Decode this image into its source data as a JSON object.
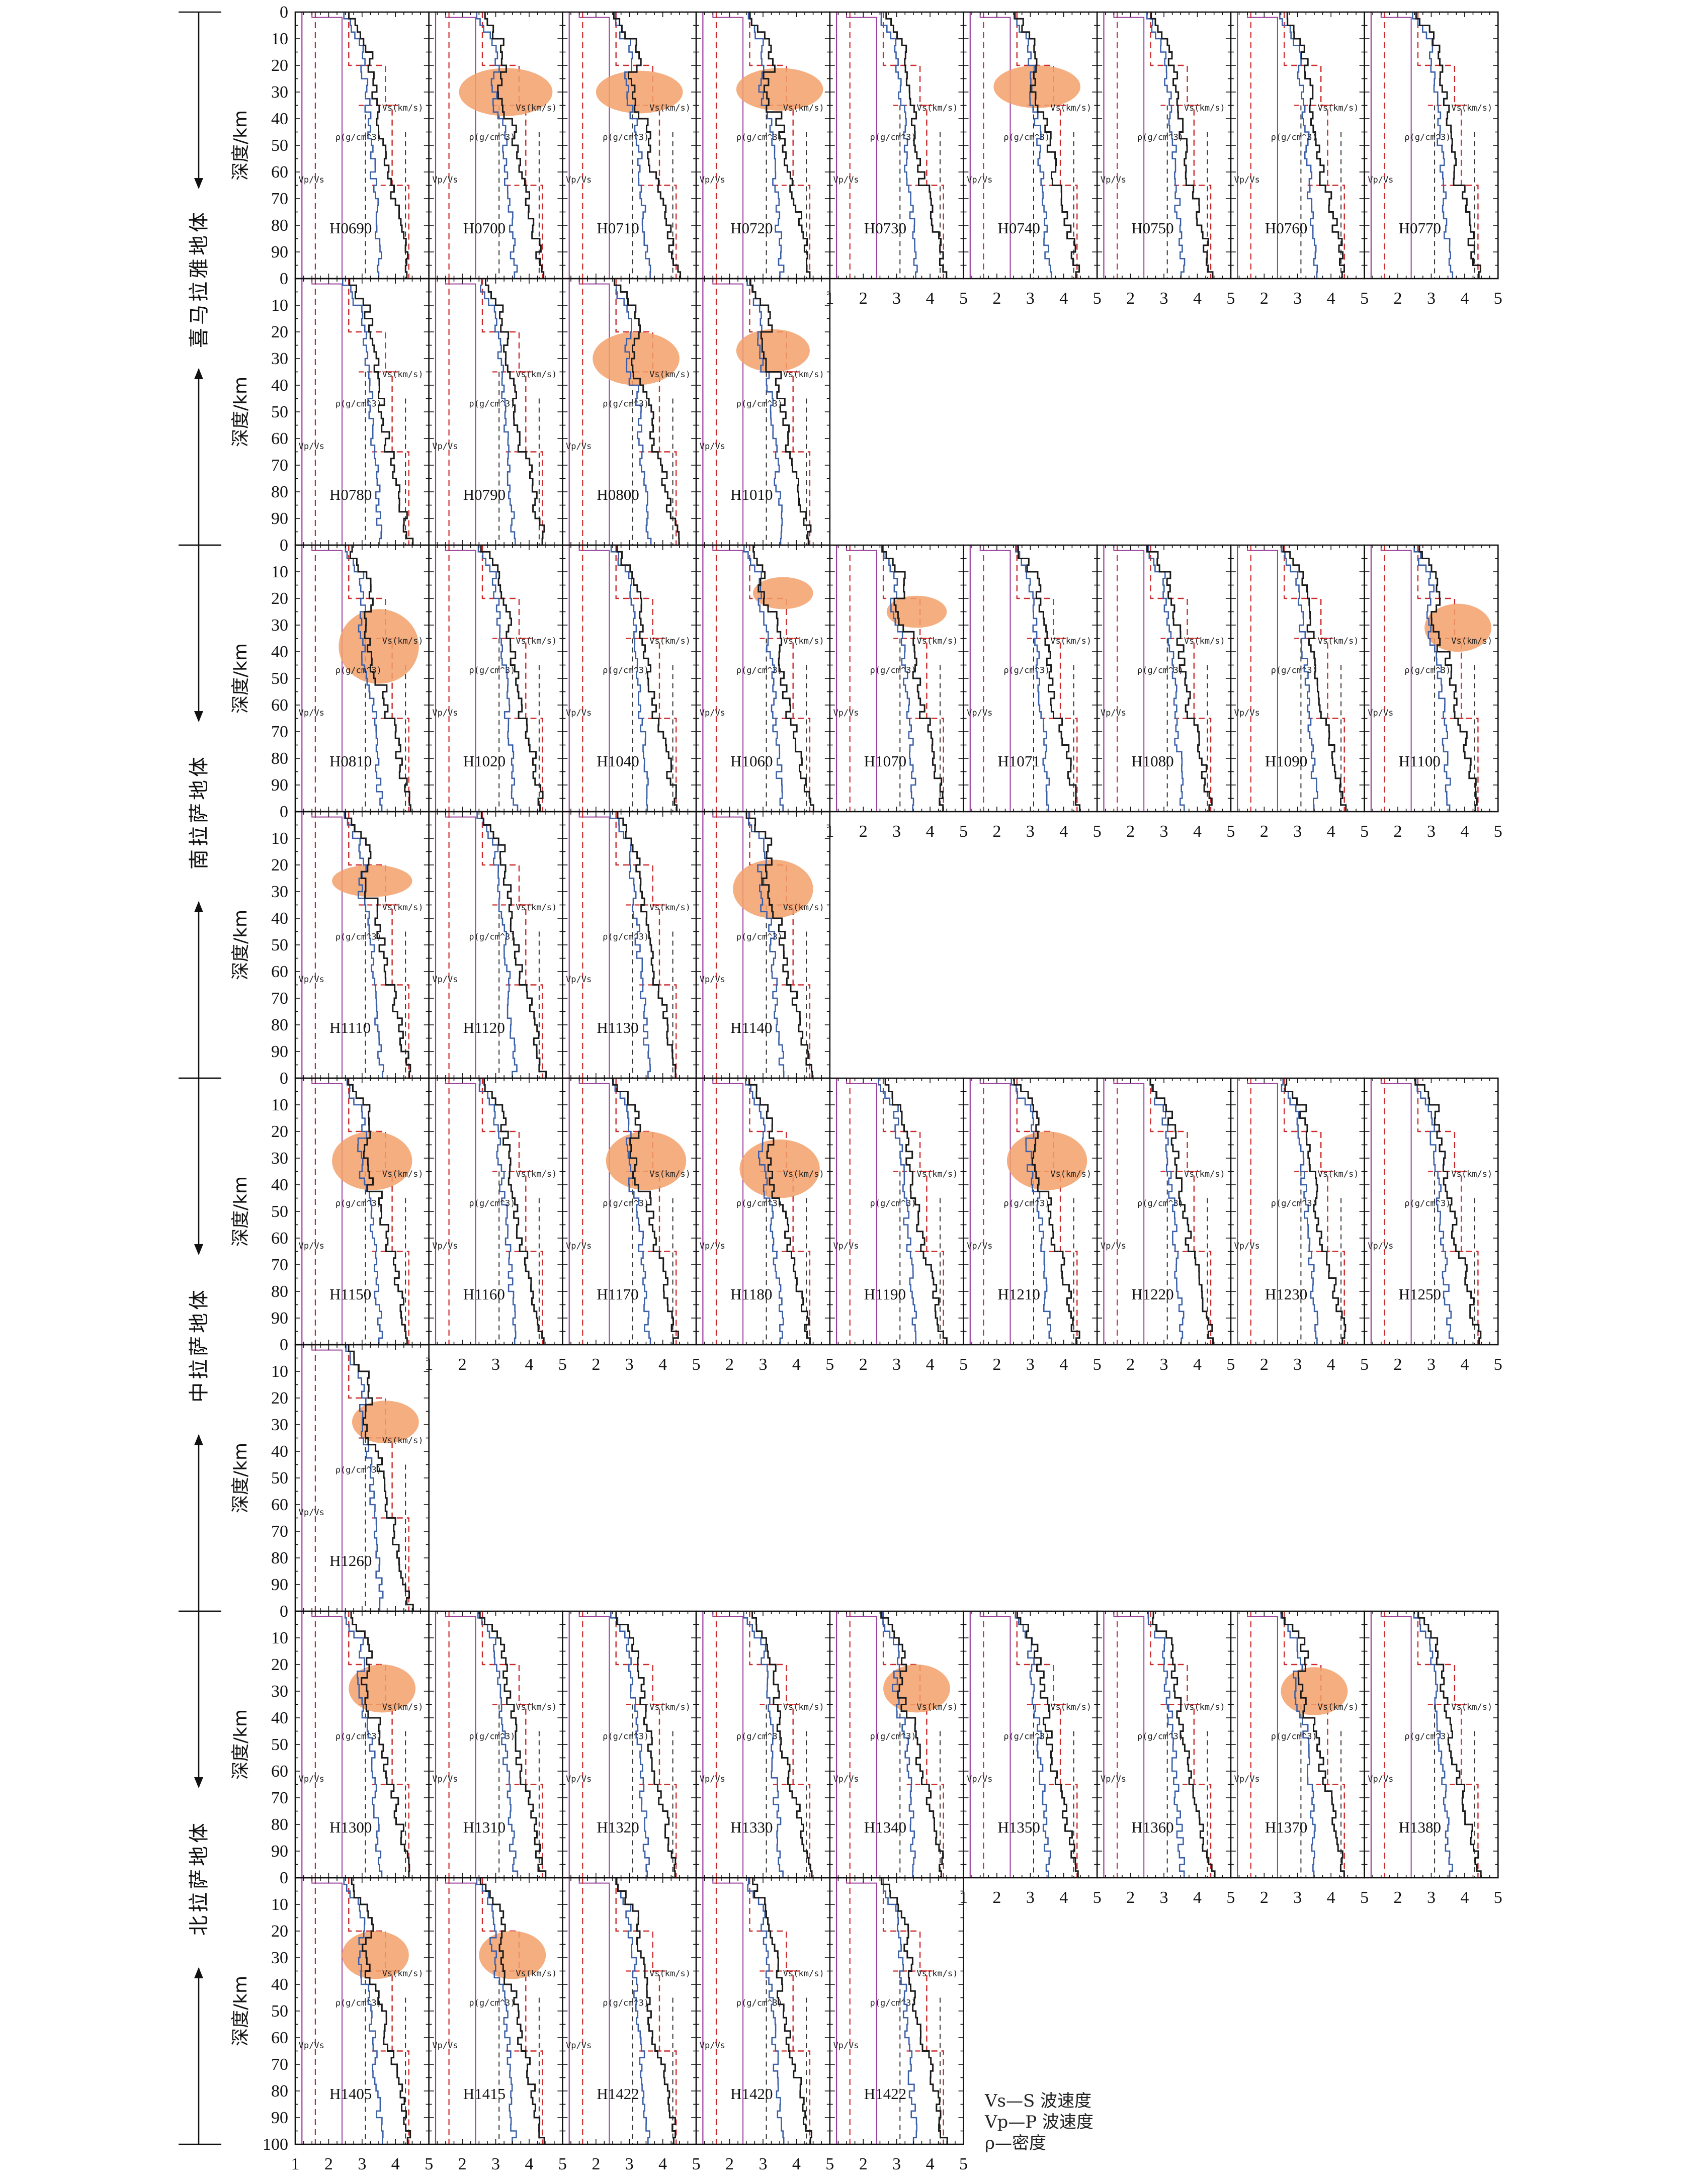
{
  "y_axis_label": "深度/km",
  "y_ticks": [
    "0",
    "10",
    "20",
    "30",
    "40",
    "50",
    "60",
    "70",
    "80",
    "90"
  ],
  "y_ticks_last": [
    "0",
    "10",
    "20",
    "30",
    "40",
    "50",
    "60",
    "70",
    "80",
    "90",
    "100"
  ],
  "x_ticks_first": [
    "1",
    "2",
    "3",
    "4",
    "5"
  ],
  "x_ticks": [
    "2",
    "3",
    "4",
    "5"
  ],
  "curve_labels": {
    "vs": "Vs(km/s)",
    "rho": "ρ(g/cm^3)",
    "vpvs": "Vp/Vs"
  },
  "blocks": [
    {
      "label": "喜马拉雅地体"
    },
    {
      "label": "南拉萨地体"
    },
    {
      "label": "中拉萨地体"
    },
    {
      "label": "北拉萨地体"
    }
  ],
  "legend": {
    "l1": "Vs—S 波速度",
    "l2": "Vp—P 波速度",
    "l3": "ρ—密度"
  },
  "colors": {
    "vs_line": "#1a1a1a",
    "vs_model": "#3a5fa8",
    "ref": "#cc2a2a",
    "vpvs": "#9a3f9a",
    "highlight": "#f2a06a"
  },
  "chart_data": {
    "type": "line",
    "xlim": [
      1,
      5
    ],
    "ylim": [
      0,
      100
    ],
    "y_reversed": true,
    "xlabel": "",
    "ylabel": "深度/km",
    "series_legend": [
      "Vs—S 波速度",
      "Vp—P 波速度",
      "ρ—密度"
    ],
    "panels": [
      {
        "station": "H0690",
        "block": 0,
        "row": 0,
        "col": 0,
        "lvz": null
      },
      {
        "station": "H0700",
        "block": 0,
        "row": 0,
        "col": 1,
        "lvz": {
          "x": 3.3,
          "depth": 30,
          "rx": 1.4,
          "rdepth": 9
        }
      },
      {
        "station": "H0710",
        "block": 0,
        "row": 0,
        "col": 2,
        "lvz": {
          "x": 3.3,
          "depth": 30,
          "rx": 1.3,
          "rdepth": 8
        }
      },
      {
        "station": "H0720",
        "block": 0,
        "row": 0,
        "col": 3,
        "lvz": {
          "x": 3.5,
          "depth": 29,
          "rx": 1.3,
          "rdepth": 8
        }
      },
      {
        "station": "H0730",
        "block": 0,
        "row": 0,
        "col": 4,
        "lvz": null
      },
      {
        "station": "H0740",
        "block": 0,
        "row": 0,
        "col": 5,
        "lvz": {
          "x": 3.2,
          "depth": 28,
          "rx": 1.3,
          "rdepth": 8
        }
      },
      {
        "station": "H0750",
        "block": 0,
        "row": 0,
        "col": 6,
        "lvz": null
      },
      {
        "station": "H0760",
        "block": 0,
        "row": 0,
        "col": 7,
        "lvz": null
      },
      {
        "station": "H0770",
        "block": 0,
        "row": 0,
        "col": 8,
        "lvz": null
      },
      {
        "station": "H0780",
        "block": 0,
        "row": 1,
        "col": 0,
        "lvz": null
      },
      {
        "station": "H0790",
        "block": 0,
        "row": 1,
        "col": 1,
        "lvz": null
      },
      {
        "station": "H0800",
        "block": 0,
        "row": 1,
        "col": 2,
        "lvz": {
          "x": 3.2,
          "depth": 30,
          "rx": 1.3,
          "rdepth": 10
        }
      },
      {
        "station": "H1010",
        "block": 0,
        "row": 1,
        "col": 3,
        "lvz": {
          "x": 3.3,
          "depth": 27,
          "rx": 1.1,
          "rdepth": 8
        }
      },
      {
        "station": "H0810",
        "block": 1,
        "row": 2,
        "col": 0,
        "lvz": {
          "x": 3.5,
          "depth": 38,
          "rx": 1.2,
          "rdepth": 14
        }
      },
      {
        "station": "H1020",
        "block": 1,
        "row": 2,
        "col": 1,
        "lvz": null
      },
      {
        "station": "H1040",
        "block": 1,
        "row": 2,
        "col": 2,
        "lvz": null
      },
      {
        "station": "H1060",
        "block": 1,
        "row": 2,
        "col": 3,
        "lvz": {
          "x": 3.6,
          "depth": 18,
          "rx": 0.9,
          "rdepth": 6
        }
      },
      {
        "station": "H1070",
        "block": 1,
        "row": 2,
        "col": 4,
        "lvz": {
          "x": 3.6,
          "depth": 25,
          "rx": 0.9,
          "rdepth": 6
        }
      },
      {
        "station": "H1071",
        "block": 1,
        "row": 2,
        "col": 5,
        "lvz": null
      },
      {
        "station": "H1080",
        "block": 1,
        "row": 2,
        "col": 6,
        "lvz": null
      },
      {
        "station": "H1090",
        "block": 1,
        "row": 2,
        "col": 7,
        "lvz": null
      },
      {
        "station": "H1100",
        "block": 1,
        "row": 2,
        "col": 8,
        "lvz": {
          "x": 3.8,
          "depth": 31,
          "rx": 1.0,
          "rdepth": 9
        }
      },
      {
        "station": "H1110",
        "block": 1,
        "row": 3,
        "col": 0,
        "lvz": {
          "x": 3.3,
          "depth": 26,
          "rx": 1.2,
          "rdepth": 6
        }
      },
      {
        "station": "H1120",
        "block": 1,
        "row": 3,
        "col": 1,
        "lvz": null
      },
      {
        "station": "H1130",
        "block": 1,
        "row": 3,
        "col": 2,
        "lvz": null
      },
      {
        "station": "H1140",
        "block": 1,
        "row": 3,
        "col": 3,
        "lvz": {
          "x": 3.3,
          "depth": 29,
          "rx": 1.2,
          "rdepth": 11
        }
      },
      {
        "station": "H1150",
        "block": 2,
        "row": 4,
        "col": 0,
        "lvz": {
          "x": 3.3,
          "depth": 31,
          "rx": 1.2,
          "rdepth": 11
        }
      },
      {
        "station": "H1160",
        "block": 2,
        "row": 4,
        "col": 1,
        "lvz": null
      },
      {
        "station": "H1170",
        "block": 2,
        "row": 4,
        "col": 2,
        "lvz": {
          "x": 3.5,
          "depth": 31,
          "rx": 1.2,
          "rdepth": 11
        }
      },
      {
        "station": "H1180",
        "block": 2,
        "row": 4,
        "col": 3,
        "lvz": {
          "x": 3.5,
          "depth": 34,
          "rx": 1.2,
          "rdepth": 11
        }
      },
      {
        "station": "H1190",
        "block": 2,
        "row": 4,
        "col": 4,
        "lvz": null
      },
      {
        "station": "H1210",
        "block": 2,
        "row": 4,
        "col": 5,
        "lvz": {
          "x": 3.5,
          "depth": 31,
          "rx": 1.2,
          "rdepth": 11
        }
      },
      {
        "station": "H1220",
        "block": 2,
        "row": 4,
        "col": 6,
        "lvz": null
      },
      {
        "station": "H1230",
        "block": 2,
        "row": 4,
        "col": 7,
        "lvz": null
      },
      {
        "station": "H1250",
        "block": 2,
        "row": 4,
        "col": 8,
        "lvz": null
      },
      {
        "station": "H1260",
        "block": 2,
        "row": 5,
        "col": 0,
        "lvz": {
          "x": 3.7,
          "depth": 29,
          "rx": 1.0,
          "rdepth": 8
        }
      },
      {
        "station": "H1300",
        "block": 3,
        "row": 6,
        "col": 0,
        "lvz": {
          "x": 3.6,
          "depth": 29,
          "rx": 1.0,
          "rdepth": 9
        }
      },
      {
        "station": "H1310",
        "block": 3,
        "row": 6,
        "col": 1,
        "lvz": null
      },
      {
        "station": "H1320",
        "block": 3,
        "row": 6,
        "col": 2,
        "lvz": null
      },
      {
        "station": "H1330",
        "block": 3,
        "row": 6,
        "col": 3,
        "lvz": null
      },
      {
        "station": "H1340",
        "block": 3,
        "row": 6,
        "col": 4,
        "lvz": {
          "x": 3.6,
          "depth": 29,
          "rx": 1.0,
          "rdepth": 9
        }
      },
      {
        "station": "H1350",
        "block": 3,
        "row": 6,
        "col": 5,
        "lvz": null
      },
      {
        "station": "H1360",
        "block": 3,
        "row": 6,
        "col": 6,
        "lvz": null
      },
      {
        "station": "H1370",
        "block": 3,
        "row": 6,
        "col": 7,
        "lvz": {
          "x": 3.5,
          "depth": 30,
          "rx": 1.0,
          "rdepth": 9
        }
      },
      {
        "station": "H1380",
        "block": 3,
        "row": 6,
        "col": 8,
        "lvz": null
      },
      {
        "station": "H1405",
        "block": 3,
        "row": 7,
        "col": 0,
        "lvz": {
          "x": 3.4,
          "depth": 29,
          "rx": 1.0,
          "rdepth": 9
        }
      },
      {
        "station": "H1415",
        "block": 3,
        "row": 7,
        "col": 1,
        "lvz": {
          "x": 3.5,
          "depth": 29,
          "rx": 1.0,
          "rdepth": 9
        }
      },
      {
        "station": "H1422",
        "block": 3,
        "row": 7,
        "col": 2,
        "lvz": null
      },
      {
        "station": "H1420",
        "block": 3,
        "row": 7,
        "col": 3,
        "lvz": null
      },
      {
        "station": "H1422",
        "block": 3,
        "row": 7,
        "col": 4,
        "lvz": null
      }
    ]
  }
}
